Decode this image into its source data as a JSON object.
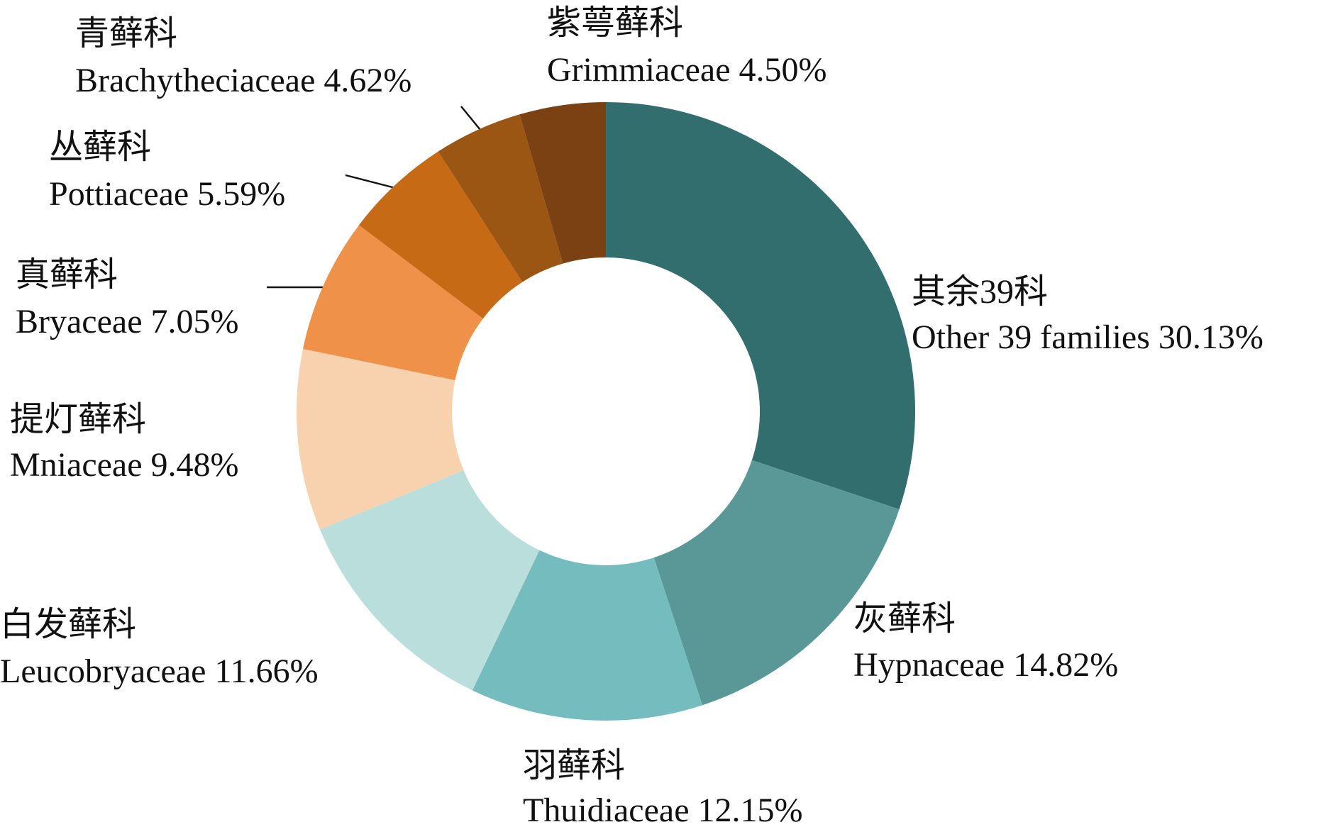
{
  "chart_data": {
    "type": "donut",
    "categories": [
      "Other 39 families",
      "Hypnaceae",
      "Thuidiaceae",
      "Leucobryaceae",
      "Mniaceae",
      "Bryaceae",
      "Pottiaceae",
      "Brachytheciaceae",
      "Grimmiaceae"
    ],
    "labels_zh": [
      "其余39科",
      "灰藓科",
      "羽藓科",
      "白发藓科",
      "提灯藓科",
      "真藓科",
      "丛藓科",
      "青藓科",
      "紫萼藓科"
    ],
    "values": [
      30.13,
      14.82,
      12.15,
      11.66,
      9.48,
      7.05,
      5.59,
      4.62,
      4.5
    ],
    "value_labels": [
      "30.13%",
      "14.82%",
      "12.15%",
      "11.66%",
      "9.48%",
      "7.05%",
      "5.59%",
      "4.62%",
      "4.50%"
    ],
    "colors": [
      "#336e6e",
      "#5a9898",
      "#74bcbd",
      "#b9dedb",
      "#f8d2ae",
      "#ef9148",
      "#c66a16",
      "#9b5614",
      "#7b4112"
    ]
  }
}
